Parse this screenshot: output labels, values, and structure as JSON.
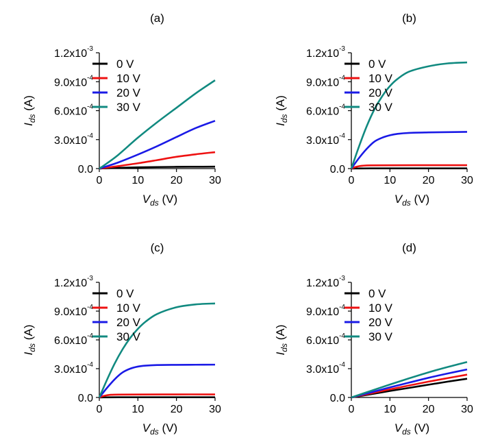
{
  "chart_data": [
    {
      "type": "line",
      "title": "(a)",
      "xlabel": {
        "main": "V",
        "sub": "ds",
        "unit": " (V)"
      },
      "ylabel": {
        "main": "I",
        "sub": "ds",
        "unit": " (A)"
      },
      "xlim": [
        0,
        30
      ],
      "ylim": [
        0,
        0.0012
      ],
      "xticks": [
        {
          "v": 0,
          "label": "0"
        },
        {
          "v": 10,
          "label": "10"
        },
        {
          "v": 20,
          "label": "20"
        },
        {
          "v": 30,
          "label": "30"
        }
      ],
      "yticks": [
        {
          "v": 0,
          "mant": "0.0",
          "exp": ""
        },
        {
          "v": 0.0003,
          "mant": "3.0x10",
          "exp": "-4"
        },
        {
          "v": 0.0006,
          "mant": "6.0x10",
          "exp": "-4"
        },
        {
          "v": 0.0009,
          "mant": "9.0x10",
          "exp": "-4"
        },
        {
          "v": 0.0012,
          "mant": "1.2x10",
          "exp": "-3"
        }
      ],
      "legend_position": "top-left",
      "series": [
        {
          "name": "0 V",
          "color": "#000000",
          "x": [
            0,
            2,
            5,
            10,
            15,
            20,
            25,
            30
          ],
          "y": [
            0,
            4e-06,
            8e-06,
            1.3e-05,
            1.6e-05,
            1.8e-05,
            1.9e-05,
            2e-05
          ]
        },
        {
          "name": "10 V",
          "color": "#ee1111",
          "x": [
            0,
            2,
            5,
            10,
            15,
            20,
            25,
            30
          ],
          "y": [
            0,
            1e-05,
            2.6e-05,
            5.5e-05,
            8.8e-05,
            0.000122,
            0.000148,
            0.00017
          ]
        },
        {
          "name": "20 V",
          "color": "#1a1ae6",
          "x": [
            0,
            2,
            5,
            10,
            15,
            20,
            25,
            30
          ],
          "y": [
            0,
            2.5e-05,
            6.5e-05,
            0.000145,
            0.000232,
            0.000327,
            0.00042,
            0.000495
          ]
        },
        {
          "name": "30 V",
          "color": "#118a80",
          "x": [
            0,
            2,
            5,
            10,
            15,
            20,
            25,
            30
          ],
          "y": [
            0,
            5.5e-05,
            0.000145,
            0.00032,
            0.00048,
            0.00063,
            0.00078,
            0.000915
          ]
        }
      ]
    },
    {
      "type": "line",
      "title": "(b)",
      "xlabel": {
        "main": "V",
        "sub": "ds",
        "unit": " (V)"
      },
      "ylabel": {
        "main": "I",
        "sub": "ds",
        "unit": " (A)"
      },
      "xlim": [
        0,
        30
      ],
      "ylim": [
        0,
        0.0012
      ],
      "xticks": [
        {
          "v": 0,
          "label": "0"
        },
        {
          "v": 10,
          "label": "10"
        },
        {
          "v": 20,
          "label": "20"
        },
        {
          "v": 30,
          "label": "30"
        }
      ],
      "yticks": [
        {
          "v": 0,
          "mant": "0.0",
          "exp": ""
        },
        {
          "v": 0.0003,
          "mant": "3.0x10",
          "exp": "-4"
        },
        {
          "v": 0.0006,
          "mant": "6.0x10",
          "exp": "-4"
        },
        {
          "v": 0.0009,
          "mant": "9.0x10",
          "exp": "-4"
        },
        {
          "v": 0.0012,
          "mant": "1.2x10",
          "exp": "-3"
        }
      ],
      "legend_position": "top-left",
      "series": [
        {
          "name": "0 V",
          "color": "#000000",
          "x": [
            0,
            1,
            2,
            5,
            10,
            20,
            30
          ],
          "y": [
            0,
            1e-06,
            1e-06,
            2e-06,
            2e-06,
            2e-06,
            2e-06
          ]
        },
        {
          "name": "10 V",
          "color": "#ee1111",
          "x": [
            0,
            1,
            2,
            3,
            5,
            10,
            20,
            30
          ],
          "y": [
            0,
            1.5e-05,
            2.5e-05,
            3e-05,
            3.3e-05,
            3.4e-05,
            3.5e-05,
            3.5e-05
          ]
        },
        {
          "name": "20 V",
          "color": "#1a1ae6",
          "x": [
            0,
            2,
            4,
            6,
            8,
            10,
            12,
            15,
            20,
            25,
            30
          ],
          "y": [
            0,
            0.00011,
            0.000205,
            0.00028,
            0.00032,
            0.000345,
            0.00036,
            0.00037,
            0.000375,
            0.000378,
            0.00038
          ]
        },
        {
          "name": "30 V",
          "color": "#118a80",
          "x": [
            0,
            2,
            4,
            6,
            8,
            10,
            12,
            15,
            20,
            25,
            30
          ],
          "y": [
            0,
            0.00023,
            0.00044,
            0.000615,
            0.00075,
            0.000855,
            0.00093,
            0.001005,
            0.00106,
            0.00109,
            0.0011
          ]
        }
      ]
    },
    {
      "type": "line",
      "title": "(c)",
      "xlabel": {
        "main": "V",
        "sub": "ds",
        "unit": " (V)"
      },
      "ylabel": {
        "main": "I",
        "sub": "ds",
        "unit": " (A)"
      },
      "xlim": [
        0,
        30
      ],
      "ylim": [
        0,
        0.0012
      ],
      "xticks": [
        {
          "v": 0,
          "label": "0"
        },
        {
          "v": 10,
          "label": "10"
        },
        {
          "v": 20,
          "label": "20"
        },
        {
          "v": 30,
          "label": "30"
        }
      ],
      "yticks": [
        {
          "v": 0,
          "mant": "0.0",
          "exp": ""
        },
        {
          "v": 0.0003,
          "mant": "3.0x10",
          "exp": "-4"
        },
        {
          "v": 0.0006,
          "mant": "6.0x10",
          "exp": "-4"
        },
        {
          "v": 0.0009,
          "mant": "9.0x10",
          "exp": "-4"
        },
        {
          "v": 0.0012,
          "mant": "1.2x10",
          "exp": "-3"
        }
      ],
      "legend_position": "top-left",
      "series": [
        {
          "name": "0 V",
          "color": "#000000",
          "x": [
            0,
            1,
            2,
            5,
            10,
            20,
            30
          ],
          "y": [
            0,
            1e-06,
            1e-06,
            2e-06,
            2e-06,
            2e-06,
            2e-06
          ]
        },
        {
          "name": "10 V",
          "color": "#ee1111",
          "x": [
            0,
            1,
            2,
            3,
            5,
            10,
            20,
            30
          ],
          "y": [
            0,
            1.4e-05,
            2.3e-05,
            2.8e-05,
            3e-05,
            3.1e-05,
            3.2e-05,
            3.2e-05
          ]
        },
        {
          "name": "20 V",
          "color": "#1a1ae6",
          "x": [
            0,
            2,
            4,
            6,
            8,
            10,
            12,
            15,
            20,
            25,
            30
          ],
          "y": [
            0,
            0.0001,
            0.00019,
            0.00026,
            0.0003,
            0.000322,
            0.000332,
            0.000338,
            0.00034,
            0.000341,
            0.000342
          ]
        },
        {
          "name": "30 V",
          "color": "#118a80",
          "x": [
            0,
            2,
            4,
            6,
            8,
            10,
            12,
            15,
            20,
            25,
            30
          ],
          "y": [
            0,
            0.000185,
            0.000355,
            0.0005,
            0.00062,
            0.000715,
            0.00079,
            0.00087,
            0.00094,
            0.00097,
            0.00098
          ]
        }
      ]
    },
    {
      "type": "line",
      "title": "(d)",
      "xlabel": {
        "main": "V",
        "sub": "ds",
        "unit": " (V)"
      },
      "ylabel": {
        "main": "I",
        "sub": "ds",
        "unit": " (A)"
      },
      "xlim": [
        0,
        30
      ],
      "ylim": [
        0,
        0.0012
      ],
      "xticks": [
        {
          "v": 0,
          "label": "0"
        },
        {
          "v": 10,
          "label": "10"
        },
        {
          "v": 20,
          "label": "20"
        },
        {
          "v": 30,
          "label": "30"
        }
      ],
      "yticks": [
        {
          "v": 0,
          "mant": "0.0",
          "exp": ""
        },
        {
          "v": 0.0003,
          "mant": "3.0x10",
          "exp": "-4"
        },
        {
          "v": 0.0006,
          "mant": "6.0x10",
          "exp": "-4"
        },
        {
          "v": 0.0009,
          "mant": "9.0x10",
          "exp": "-4"
        },
        {
          "v": 0.0012,
          "mant": "1.2x10",
          "exp": "-3"
        }
      ],
      "legend_position": "top-left",
      "series": [
        {
          "name": "0 V",
          "color": "#000000",
          "x": [
            0,
            5,
            10,
            15,
            20,
            25,
            30
          ],
          "y": [
            0,
            3.3e-05,
            6.8e-05,
            0.0001,
            0.000133,
            0.000165,
            0.000195
          ]
        },
        {
          "name": "10 V",
          "color": "#ee1111",
          "x": [
            0,
            5,
            10,
            15,
            20,
            25,
            30
          ],
          "y": [
            0,
            4.2e-05,
            8.5e-05,
            0.000125,
            0.000165,
            0.000202,
            0.000238
          ]
        },
        {
          "name": "20 V",
          "color": "#1a1ae6",
          "x": [
            0,
            5,
            10,
            15,
            20,
            25,
            30
          ],
          "y": [
            0,
            5.2e-05,
            0.000105,
            0.000155,
            0.000205,
            0.00025,
            0.000292
          ]
        },
        {
          "name": "30 V",
          "color": "#118a80",
          "x": [
            0,
            5,
            10,
            15,
            20,
            25,
            30
          ],
          "y": [
            0,
            6.8e-05,
            0.000135,
            0.0002,
            0.000262,
            0.000318,
            0.00037
          ]
        }
      ]
    }
  ]
}
